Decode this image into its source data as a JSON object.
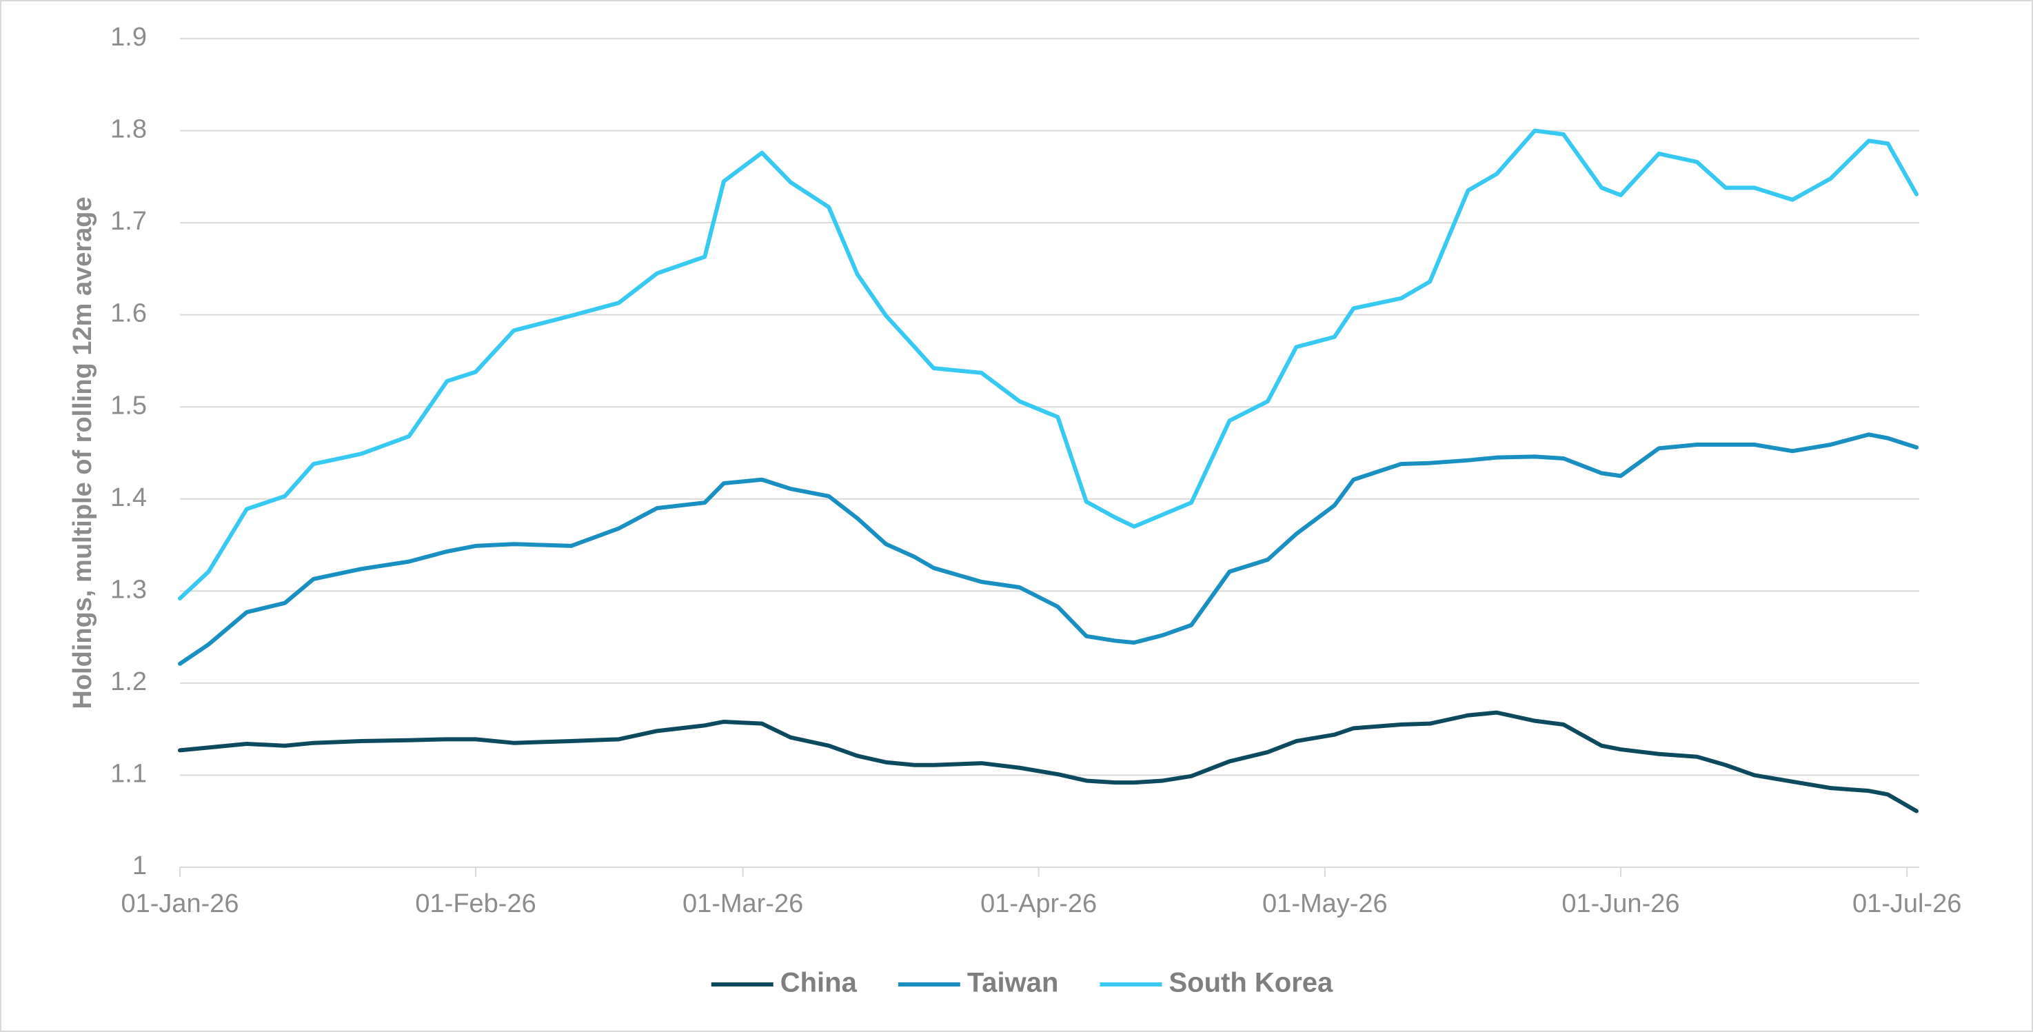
{
  "chart_data": {
    "type": "line",
    "y_label": "Holdings, multiple of rolling 12m average",
    "x": [
      "2026-01-01",
      "2026-01-04",
      "2026-01-08",
      "2026-01-12",
      "2026-01-15",
      "2026-01-20",
      "2026-01-25",
      "2026-01-29",
      "2026-02-01",
      "2026-02-05",
      "2026-02-11",
      "2026-02-16",
      "2026-02-20",
      "2026-02-25",
      "2026-02-27",
      "2026-03-03",
      "2026-03-06",
      "2026-03-10",
      "2026-03-13",
      "2026-03-16",
      "2026-03-19",
      "2026-03-21",
      "2026-03-26",
      "2026-03-30",
      "2026-04-03",
      "2026-04-06",
      "2026-04-09",
      "2026-04-11",
      "2026-04-14",
      "2026-04-17",
      "2026-04-21",
      "2026-04-25",
      "2026-04-28",
      "2026-05-02",
      "2026-05-04",
      "2026-05-09",
      "2026-05-12",
      "2026-05-16",
      "2026-05-19",
      "2026-05-23",
      "2026-05-26",
      "2026-05-30",
      "2026-06-01",
      "2026-06-05",
      "2026-06-09",
      "2026-06-12",
      "2026-06-15",
      "2026-06-19",
      "2026-06-23",
      "2026-06-27",
      "2026-06-29",
      "2026-07-02"
    ],
    "series": [
      {
        "name": "China",
        "color": "#0e4a5f",
        "values": [
          1.127,
          1.13,
          1.134,
          1.132,
          1.135,
          1.137,
          1.138,
          1.139,
          1.139,
          1.135,
          1.137,
          1.139,
          1.148,
          1.154,
          1.158,
          1.156,
          1.141,
          1.132,
          1.121,
          1.114,
          1.111,
          1.111,
          1.113,
          1.108,
          1.101,
          1.094,
          1.092,
          1.092,
          1.094,
          1.099,
          1.115,
          1.125,
          1.137,
          1.144,
          1.151,
          1.155,
          1.156,
          1.165,
          1.168,
          1.159,
          1.155,
          1.132,
          1.128,
          1.123,
          1.12,
          1.111,
          1.1,
          1.093,
          1.086,
          1.083,
          1.079,
          1.061
        ]
      },
      {
        "name": "Taiwan",
        "color": "#1a90c2",
        "values": [
          1.221,
          1.242,
          1.277,
          1.287,
          1.313,
          1.324,
          1.332,
          1.343,
          1.349,
          1.351,
          1.349,
          1.368,
          1.39,
          1.396,
          1.417,
          1.421,
          1.411,
          1.403,
          1.379,
          1.351,
          1.337,
          1.325,
          1.31,
          1.304,
          1.283,
          1.251,
          1.246,
          1.244,
          1.252,
          1.263,
          1.321,
          1.334,
          1.362,
          1.393,
          1.421,
          1.438,
          1.439,
          1.442,
          1.445,
          1.446,
          1.444,
          1.428,
          1.425,
          1.455,
          1.459,
          1.459,
          1.459,
          1.452,
          1.459,
          1.47,
          1.466,
          1.456
        ]
      },
      {
        "name": "South Korea",
        "color": "#38c9f2",
        "values": [
          1.292,
          1.321,
          1.389,
          1.403,
          1.438,
          1.449,
          1.468,
          1.528,
          1.538,
          1.583,
          1.599,
          1.613,
          1.645,
          1.663,
          1.745,
          1.776,
          1.744,
          1.717,
          1.644,
          1.599,
          1.565,
          1.542,
          1.537,
          1.506,
          1.489,
          1.397,
          1.38,
          1.37,
          1.383,
          1.396,
          1.485,
          1.506,
          1.565,
          1.576,
          1.607,
          1.618,
          1.636,
          1.735,
          1.753,
          1.8,
          1.796,
          1.738,
          1.73,
          1.775,
          1.766,
          1.738,
          1.738,
          1.725,
          1.748,
          1.789,
          1.786,
          1.731
        ]
      }
    ],
    "xlim": [
      "2026-01-01",
      "2026-07-02"
    ],
    "xticks": [
      {
        "value": "2026-01-01",
        "label": "01-Jan-26"
      },
      {
        "value": "2026-02-01",
        "label": "01-Feb-26"
      },
      {
        "value": "2026-03-01",
        "label": "01-Mar-26"
      },
      {
        "value": "2026-04-01",
        "label": "01-Apr-26"
      },
      {
        "value": "2026-05-01",
        "label": "01-May-26"
      },
      {
        "value": "2026-06-01",
        "label": "01-Jun-26"
      },
      {
        "value": "2026-07-01",
        "label": "01-Jul-26"
      }
    ],
    "ylim": [
      1,
      1.9
    ],
    "yticks": [
      1,
      1.1,
      1.2,
      1.3,
      1.4,
      1.5,
      1.6,
      1.7,
      1.8,
      1.9
    ],
    "grid": true,
    "legend": "bottom"
  }
}
